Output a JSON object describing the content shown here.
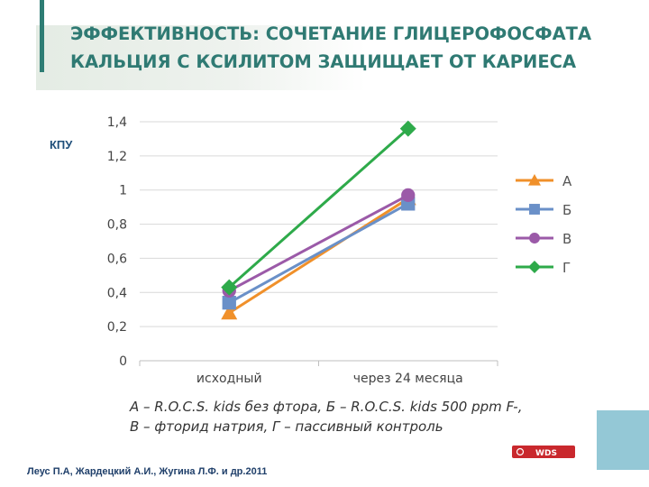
{
  "title": {
    "line1": "ЭФФЕКТИВНОСТЬ: СОЧЕТАНИЕ ГЛИЦЕРОФОСФАТА",
    "line2": "КАЛЬЦИЯ С КСИЛИТОМ  ЗАЩИЩАЕТ ОТ КАРИЕСА"
  },
  "chart_data": {
    "type": "line",
    "title": "",
    "ylabel": "КПУ",
    "xlabel": "",
    "categories": [
      "исходный",
      "через 24 месяца"
    ],
    "ylim": [
      0,
      1.4
    ],
    "yticks": [
      0,
      0.2,
      0.4,
      0.6,
      0.8,
      1,
      1.2,
      1.4
    ],
    "ytick_labels": [
      "0",
      "0,2",
      "0,4",
      "0,6",
      "0,8",
      "1",
      "1,2",
      "1,4"
    ],
    "grid": true,
    "legend_position": "right",
    "series": [
      {
        "name": "А",
        "values": [
          0.28,
          0.95
        ],
        "color": "#f0902a",
        "marker": "triangle"
      },
      {
        "name": "Б",
        "values": [
          0.34,
          0.92
        ],
        "color": "#6a90c8",
        "marker": "square"
      },
      {
        "name": "В",
        "values": [
          0.41,
          0.97
        ],
        "color": "#9b5aa8",
        "marker": "circle"
      },
      {
        "name": "Г",
        "values": [
          0.43,
          1.36
        ],
        "color": "#2eaa4a",
        "marker": "diamond"
      }
    ]
  },
  "caption": {
    "line1": "А – R.O.C.S. kids без фтора, Б – R.O.C.S. kids 500 ppm F-,",
    "line2": "В – фторид натрия, Г – пассивный контроль"
  },
  "logo": {
    "text": "WDS",
    "color": "#c9282d"
  },
  "citation": "Леус П.А, Жардецкий А.И., Жугина Л.Ф. и др.2011"
}
